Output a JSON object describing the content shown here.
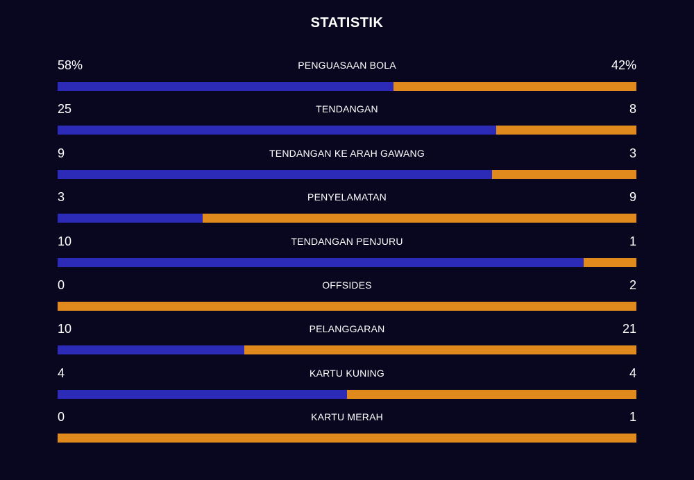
{
  "title": "STATISTIK",
  "colors": {
    "background": "#08071f",
    "home": "#2b2bb8",
    "away": "#e08a1e",
    "text": "#ffffff"
  },
  "stats": [
    {
      "label": "PENGUASAAN BOLA",
      "home": "58%",
      "away": "42%",
      "home_share": 0.58
    },
    {
      "label": "TENDANGAN",
      "home": "25",
      "away": "8",
      "home_share": 0.7576
    },
    {
      "label": "TENDANGAN KE ARAH GAWANG",
      "home": "9",
      "away": "3",
      "home_share": 0.75
    },
    {
      "label": "PENYELAMATAN",
      "home": "3",
      "away": "9",
      "home_share": 0.25
    },
    {
      "label": "TENDANGAN PENJURU",
      "home": "10",
      "away": "1",
      "home_share": 0.9091
    },
    {
      "label": "OFFSIDES",
      "home": "0",
      "away": "2",
      "home_share": 0
    },
    {
      "label": "PELANGGARAN",
      "home": "10",
      "away": "21",
      "home_share": 0.3226
    },
    {
      "label": "KARTU KUNING",
      "home": "4",
      "away": "4",
      "home_share": 0.5
    },
    {
      "label": "KARTU MERAH",
      "home": "0",
      "away": "1",
      "home_share": 0
    }
  ]
}
